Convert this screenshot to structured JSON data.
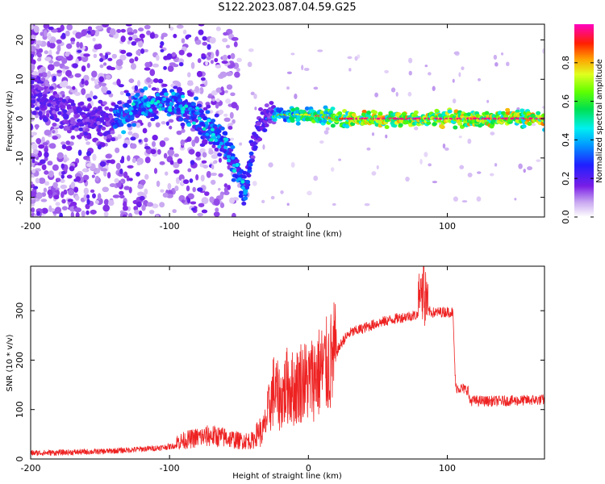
{
  "title": "S122.2023.087.04.59.G25",
  "colors": {
    "line": "#ee2222",
    "background": "#ffffff",
    "axis": "#000000"
  },
  "chart_data": [
    {
      "type": "heatmap",
      "name": "spectrogram",
      "xlabel": "Height of straight line (km)",
      "ylabel": "Frequency (Hz)",
      "xlim": [
        -200,
        170
      ],
      "ylim": [
        -25,
        24
      ],
      "xticks": [
        -200,
        -100,
        0,
        100
      ],
      "xtick_labels": [
        "-200",
        "-100",
        "0",
        "100"
      ],
      "yticks": [
        -20,
        -10,
        0,
        10,
        20
      ],
      "ytick_labels": [
        "-20",
        "-10",
        "0",
        "10",
        "20"
      ],
      "colorbar": {
        "label": "Normalized spectral amplitude",
        "range": [
          0,
          1
        ],
        "ticks": [
          0.0,
          0.2,
          0.4,
          0.6,
          0.8
        ],
        "tick_labels": [
          "0.0",
          "0.2",
          "0.4",
          "0.6",
          "0.8"
        ],
        "colormap": "gist_ncar-like (white-purple-blue-cyan-green-yellow-red-magenta)"
      },
      "ridge": [
        {
          "x": -200,
          "y": 6
        },
        {
          "x": -190,
          "y": 5
        },
        {
          "x": -180,
          "y": 3
        },
        {
          "x": -170,
          "y": 1
        },
        {
          "x": -160,
          "y": 0
        },
        {
          "x": -150,
          "y": 0
        },
        {
          "x": -140,
          "y": 0
        },
        {
          "x": -130,
          "y": 2
        },
        {
          "x": -120,
          "y": 3
        },
        {
          "x": -110,
          "y": 4
        },
        {
          "x": -100,
          "y": 4
        },
        {
          "x": -90,
          "y": 3
        },
        {
          "x": -80,
          "y": 0
        },
        {
          "x": -70,
          "y": -3
        },
        {
          "x": -60,
          "y": -6
        },
        {
          "x": -55,
          "y": -10
        },
        {
          "x": -50,
          "y": -14
        },
        {
          "x": -45,
          "y": -18
        },
        {
          "x": -40,
          "y": -8
        },
        {
          "x": -35,
          "y": -2
        },
        {
          "x": -30,
          "y": 0
        },
        {
          "x": -20,
          "y": 1
        },
        {
          "x": 0,
          "y": 1
        },
        {
          "x": 20,
          "y": 0
        },
        {
          "x": 100,
          "y": 0
        },
        {
          "x": 170,
          "y": 0
        }
      ]
    },
    {
      "type": "line",
      "name": "snr",
      "xlabel": "Height of straight line (km)",
      "ylabel": "SNR (10 * v/v)",
      "xlim": [
        -200,
        170
      ],
      "ylim": [
        0,
        390
      ],
      "xticks": [
        -200,
        -100,
        0,
        100
      ],
      "xtick_labels": [
        "-200",
        "-100",
        "0",
        "100"
      ],
      "yticks": [
        0,
        100,
        200,
        300
      ],
      "ytick_labels": [
        "0",
        "100",
        "200",
        "300"
      ],
      "envelope": [
        {
          "x": -200,
          "y": 12
        },
        {
          "x": -180,
          "y": 13
        },
        {
          "x": -150,
          "y": 15
        },
        {
          "x": -130,
          "y": 18
        },
        {
          "x": -110,
          "y": 22
        },
        {
          "x": -100,
          "y": 25
        },
        {
          "x": -90,
          "y": 30
        },
        {
          "x": -80,
          "y": 35
        },
        {
          "x": -70,
          "y": 38
        },
        {
          "x": -60,
          "y": 35
        },
        {
          "x": -50,
          "y": 30
        },
        {
          "x": -40,
          "y": 30
        },
        {
          "x": -32,
          "y": 60
        },
        {
          "x": -25,
          "y": 140
        },
        {
          "x": -20,
          "y": 120
        },
        {
          "x": -15,
          "y": 150
        },
        {
          "x": -10,
          "y": 140
        },
        {
          "x": -5,
          "y": 160
        },
        {
          "x": 0,
          "y": 155
        },
        {
          "x": 5,
          "y": 170
        },
        {
          "x": 10,
          "y": 180
        },
        {
          "x": 15,
          "y": 190
        },
        {
          "x": 20,
          "y": 215
        },
        {
          "x": 25,
          "y": 240
        },
        {
          "x": 30,
          "y": 255
        },
        {
          "x": 40,
          "y": 265
        },
        {
          "x": 50,
          "y": 275
        },
        {
          "x": 60,
          "y": 282
        },
        {
          "x": 70,
          "y": 288
        },
        {
          "x": 80,
          "y": 292
        },
        {
          "x": 85,
          "y": 300
        },
        {
          "x": 90,
          "y": 296
        },
        {
          "x": 100,
          "y": 298
        },
        {
          "x": 104,
          "y": 297
        },
        {
          "x": 106,
          "y": 145
        },
        {
          "x": 115,
          "y": 140
        },
        {
          "x": 116,
          "y": 118
        },
        {
          "x": 130,
          "y": 117
        },
        {
          "x": 150,
          "y": 118
        },
        {
          "x": 170,
          "y": 120
        }
      ],
      "peak": {
        "x": 83,
        "y": 390
      }
    }
  ]
}
